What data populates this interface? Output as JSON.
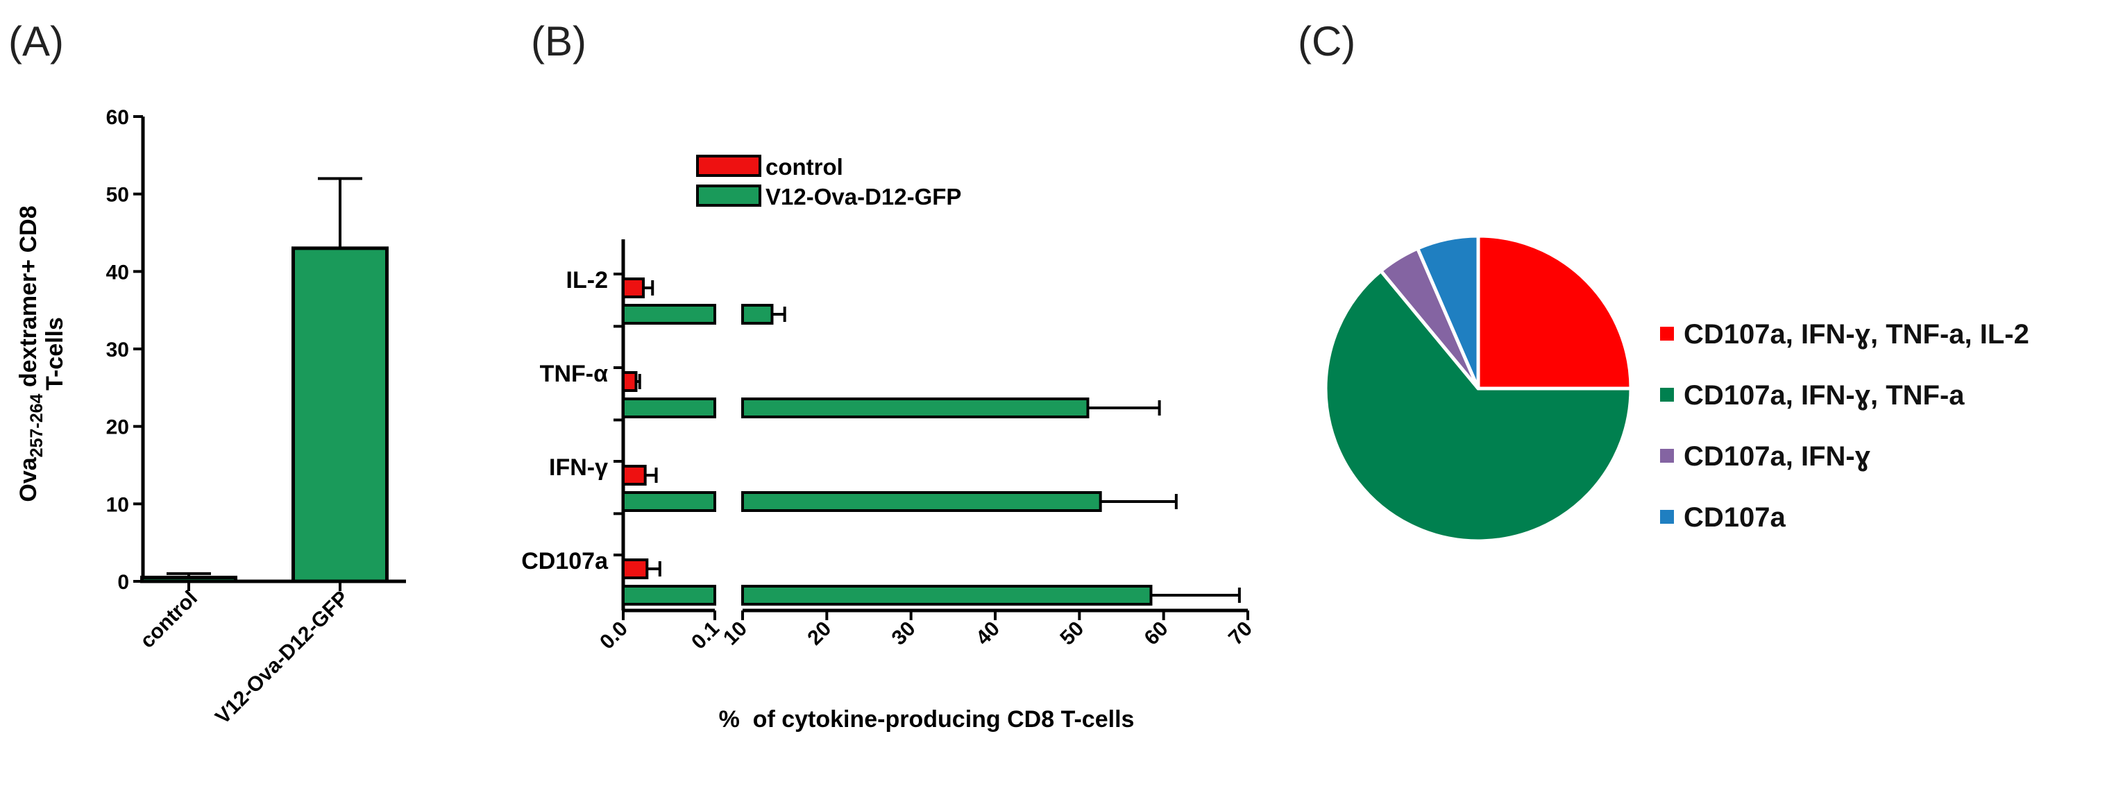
{
  "panels": {
    "a": "(A)",
    "b": "(B)",
    "c": "(C)"
  },
  "chart_data": [
    {
      "panel": "(A)",
      "type": "bar",
      "categories": [
        "control",
        "V12-Ova-D12-GFP"
      ],
      "values": [
        0.5,
        43
      ],
      "errors": [
        0.5,
        9
      ],
      "colors": [
        "#1a9a5a",
        "#1a9a5a"
      ],
      "ylabel_line1_prefix": "Ova",
      "ylabel_line1_subscript": "257-264",
      "ylabel_line1_suffix": " dextramer+ CD8",
      "ylabel_line2": "T-cells",
      "ylim": [
        0,
        60
      ],
      "yticks": [
        "0",
        "10",
        "20",
        "30",
        "40",
        "50",
        "60"
      ]
    },
    {
      "panel": "(B)",
      "type": "bar",
      "orientation": "horizontal",
      "axis_break": true,
      "categories": [
        "IL-2",
        "TNF-α",
        "IFN-γ",
        "CD107a"
      ],
      "series": [
        {
          "name": "control",
          "color": "#ee1111",
          "values": [
            0.022,
            0.014,
            0.024,
            0.026
          ],
          "errors": [
            0.01,
            0.004,
            0.012,
            0.014
          ]
        },
        {
          "name": "V12-Ova-D12-GFP",
          "color": "#1a9a5a",
          "values": [
            13.5,
            51,
            52.5,
            58.5
          ],
          "errors": [
            1.5,
            8.5,
            9,
            10.5
          ]
        }
      ],
      "xlabel": "%  of cytokine-producing CD8 T-cells",
      "xticks_low": [
        "0.0",
        "0.1"
      ],
      "xticks_high": [
        "10",
        "20",
        "30",
        "40",
        "50",
        "60",
        "70"
      ],
      "xlim_low": [
        0,
        0.1
      ],
      "xlim_high": [
        10,
        70
      ]
    },
    {
      "panel": "(C)",
      "type": "pie",
      "slices": [
        {
          "label": "CD107a, IFN-ɣ, TNF-a, IL-2",
          "value": 25,
          "color": "#ff0000"
        },
        {
          "label": "CD107a, IFN-ɣ, TNF-a",
          "value": 64,
          "color": "#00804f"
        },
        {
          "label": "CD107a, IFN-ɣ",
          "value": 4.5,
          "color": "#8464a2"
        },
        {
          "label": "CD107a",
          "value": 6.5,
          "color": "#1f7fc1"
        }
      ]
    }
  ]
}
